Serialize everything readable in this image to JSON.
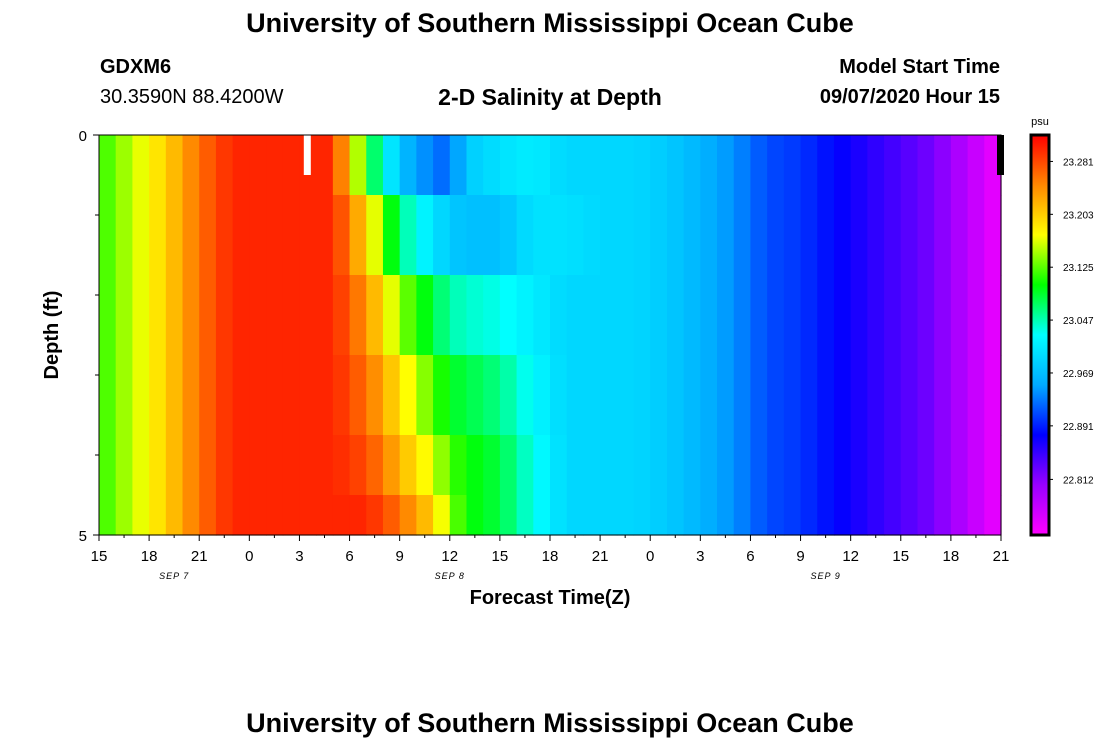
{
  "header": {
    "title": "University of Southern Mississippi Ocean Cube",
    "station_id": "GDXM6",
    "coords": "30.3590N 88.4200W",
    "chart_title": "2-D Salinity at Depth",
    "start_label": "Model Start Time",
    "start_value": "09/07/2020 Hour 15"
  },
  "footer": {
    "title": "University of Southern Mississippi Ocean Cube"
  },
  "colors": {
    "palette": [
      "#ff00ff",
      "#9900ff",
      "#0000ff",
      "#00aaff",
      "#00ffff",
      "#00ff00",
      "#ffff00",
      "#ff8800",
      "#ff0000"
    ]
  },
  "chart_data": {
    "type": "heatmap",
    "title": "2-D Salinity at Depth",
    "xlabel": "Forecast Time(Z)",
    "ylabel": "Depth (ft)",
    "x_tick_labels": [
      "15",
      "18",
      "21",
      "0",
      "3",
      "6",
      "9",
      "12",
      "15",
      "18",
      "21",
      "0",
      "3",
      "6",
      "9",
      "12",
      "15",
      "18",
      "21"
    ],
    "date_labels": [
      {
        "label": "SEP 7",
        "hour": 4.5
      },
      {
        "label": "SEP 8",
        "hour": 21
      },
      {
        "label": "SEP 9",
        "hour": 43.5
      }
    ],
    "x_range_hours": [
      0,
      54
    ],
    "x_step_hours": 1,
    "y_tick_labels": [
      "0",
      "5"
    ],
    "depth_range_ft": [
      0,
      5
    ],
    "depth_levels_ft": [
      0.25,
      1.25,
      2.25,
      3.25,
      4.25,
      4.75
    ],
    "colorbar": {
      "unit": "psu",
      "min": 22.73,
      "max": 23.32,
      "tick_labels": [
        "23.281",
        "23.203",
        "23.125",
        "23.047",
        "22.969",
        "22.891",
        "22.812"
      ]
    },
    "anchor_hours": [
      0,
      4,
      6,
      8,
      10,
      12,
      14,
      16,
      18,
      20,
      21,
      22,
      24,
      26,
      28,
      30,
      32,
      34,
      36,
      38,
      40,
      42,
      44,
      46,
      48,
      50,
      52,
      54
    ],
    "salinity_profiles": [
      {
        "depth_ft": 0.25,
        "values": [
          23.11,
          23.2,
          23.26,
          23.3,
          23.3,
          23.3,
          23.3,
          23.1,
          22.97,
          22.93,
          22.92,
          22.98,
          23.0,
          23.01,
          22.99,
          22.99,
          22.99,
          22.98,
          22.96,
          22.94,
          22.91,
          22.9,
          22.88,
          22.86,
          22.84,
          22.82,
          22.78,
          22.74
        ]
      },
      {
        "depth_ft": 1.25,
        "values": [
          23.11,
          23.2,
          23.26,
          23.3,
          23.3,
          23.3,
          23.3,
          23.2,
          23.06,
          23.0,
          22.98,
          22.97,
          22.97,
          23.0,
          23.0,
          22.99,
          22.99,
          22.98,
          22.96,
          22.94,
          22.91,
          22.9,
          22.88,
          22.86,
          22.84,
          22.82,
          22.78,
          22.74
        ]
      },
      {
        "depth_ft": 2.25,
        "values": [
          23.11,
          23.2,
          23.26,
          23.3,
          23.3,
          23.3,
          23.3,
          23.24,
          23.14,
          23.08,
          23.05,
          23.04,
          23.03,
          23.01,
          22.99,
          22.99,
          22.99,
          22.98,
          22.96,
          22.94,
          22.91,
          22.9,
          22.88,
          22.86,
          22.84,
          22.82,
          22.78,
          22.74
        ]
      },
      {
        "depth_ft": 3.25,
        "values": [
          23.11,
          23.2,
          23.26,
          23.3,
          23.3,
          23.3,
          23.3,
          23.26,
          23.19,
          23.12,
          23.09,
          23.08,
          23.06,
          23.02,
          22.99,
          22.99,
          22.99,
          22.98,
          22.96,
          22.94,
          22.91,
          22.9,
          22.88,
          22.86,
          22.84,
          22.82,
          22.78,
          22.74
        ]
      },
      {
        "depth_ft": 4.25,
        "values": [
          23.11,
          23.2,
          23.26,
          23.3,
          23.3,
          23.3,
          23.3,
          23.28,
          23.22,
          23.16,
          23.12,
          23.1,
          23.08,
          23.03,
          22.99,
          22.99,
          22.99,
          22.98,
          22.96,
          22.94,
          22.91,
          22.9,
          22.88,
          22.86,
          22.84,
          22.82,
          22.78,
          22.74
        ]
      },
      {
        "depth_ft": 4.75,
        "values": [
          23.11,
          23.2,
          23.26,
          23.3,
          23.3,
          23.3,
          23.3,
          23.3,
          23.26,
          23.2,
          23.14,
          23.1,
          23.08,
          23.03,
          22.99,
          22.99,
          22.99,
          22.98,
          22.96,
          22.94,
          22.91,
          22.9,
          22.88,
          22.86,
          22.84,
          22.82,
          22.78,
          22.74
        ]
      }
    ],
    "missing_data_marks": [
      {
        "hour": 12.5,
        "depth_range_ft": [
          0,
          0.5
        ],
        "color": "#ffffff"
      },
      {
        "hour": 54,
        "depth_range_ft": [
          0,
          0.5
        ],
        "color": "#000000"
      }
    ],
    "grid": false
  }
}
